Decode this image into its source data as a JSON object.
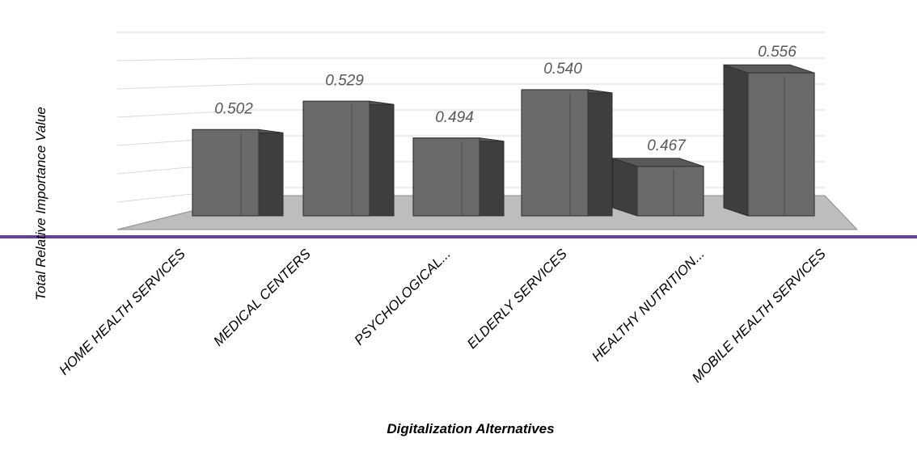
{
  "colors": {
    "bar_front": "#6a6a6a",
    "bar_side": "#3e3e3e",
    "bar_top": "#595959",
    "floor": "#bdbdbd",
    "gridline": "#d9d9d9",
    "divider": "#6b3fa0"
  },
  "chart_data": {
    "type": "bar",
    "style": "3d-column",
    "categories": [
      "HOME HEALTH SERVICES",
      "MEDICAL CENTERS",
      "PSYCHOLOGICAL...",
      "ELDERLY SERVICES",
      "HEALTHY NUTRITION...",
      "MOBILE HEALTH SERVICES"
    ],
    "values": [
      0.502,
      0.529,
      0.494,
      0.54,
      0.467,
      0.556
    ],
    "value_labels": [
      "0.502",
      "0.529",
      "0.494",
      "0.540",
      "0.467",
      "0.556"
    ],
    "xlabel": "Digitalization Alternatives",
    "ylabel": "Total Relative Importance Value",
    "grid": true,
    "legend": "none"
  }
}
